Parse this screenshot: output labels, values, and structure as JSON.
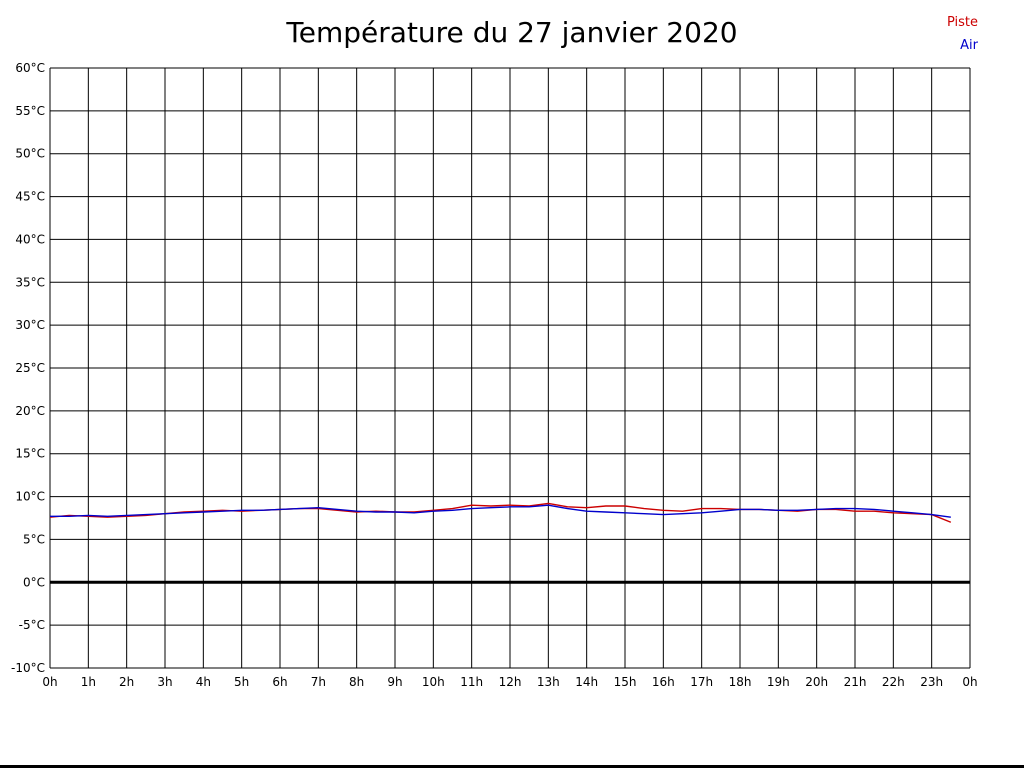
{
  "title": "Température du 27 janvier 2020",
  "chart_data": {
    "type": "line",
    "title": "Température du 27 janvier 2020",
    "xlabel": "",
    "ylabel": "",
    "xlim": [
      0,
      24
    ],
    "ylim": [
      -10,
      60
    ],
    "grid": true,
    "grid_color": "#000000",
    "zero_line": true,
    "zero_line_color": "#000000",
    "legend_position": "top-right",
    "x_tick_values": [
      0,
      1,
      2,
      3,
      4,
      5,
      6,
      7,
      8,
      9,
      10,
      11,
      12,
      13,
      14,
      15,
      16,
      17,
      18,
      19,
      20,
      21,
      22,
      23,
      24
    ],
    "x_tick_labels": [
      "0h",
      "1h",
      "2h",
      "3h",
      "4h",
      "5h",
      "6h",
      "7h",
      "8h",
      "9h",
      "10h",
      "11h",
      "12h",
      "13h",
      "14h",
      "15h",
      "16h",
      "17h",
      "18h",
      "19h",
      "20h",
      "21h",
      "22h",
      "23h",
      "0h"
    ],
    "y_tick_values": [
      60,
      55,
      50,
      45,
      40,
      35,
      30,
      25,
      20,
      15,
      10,
      5,
      0,
      -5,
      -10
    ],
    "y_tick_labels": [
      "60°C",
      "55°C",
      "50°C",
      "45°C",
      "40°C",
      "35°C",
      "30°C",
      "25°C",
      "20°C",
      "15°C",
      "10°C",
      "5°C",
      "0°C",
      "-5°C",
      "-10°C"
    ],
    "x": [
      0,
      0.5,
      1,
      1.5,
      2,
      2.5,
      3,
      3.5,
      4,
      4.5,
      5,
      5.5,
      6,
      6.5,
      7,
      7.5,
      8,
      8.5,
      9,
      9.5,
      10,
      10.5,
      11,
      11.5,
      12,
      12.5,
      13,
      13.5,
      14,
      14.5,
      15,
      15.5,
      16,
      16.5,
      17,
      17.5,
      18,
      18.5,
      19,
      19.5,
      20,
      20.5,
      21,
      21.5,
      22,
      22.5,
      23,
      23.5
    ],
    "series": [
      {
        "name": "Piste",
        "color": "#cc0000",
        "values": [
          7.6,
          7.8,
          7.7,
          7.6,
          7.7,
          7.8,
          8.0,
          8.2,
          8.3,
          8.4,
          8.3,
          8.4,
          8.5,
          8.6,
          8.6,
          8.4,
          8.2,
          8.3,
          8.2,
          8.2,
          8.4,
          8.6,
          9.0,
          8.9,
          9.0,
          8.9,
          9.2,
          8.8,
          8.7,
          8.9,
          8.9,
          8.6,
          8.4,
          8.3,
          8.6,
          8.6,
          8.5,
          8.5,
          8.4,
          8.3,
          8.5,
          8.5,
          8.3,
          8.3,
          8.1,
          8.0,
          7.9,
          7.0
        ]
      },
      {
        "name": "Air",
        "color": "#0000cc",
        "values": [
          7.7,
          7.7,
          7.8,
          7.7,
          7.8,
          7.9,
          8.0,
          8.1,
          8.2,
          8.3,
          8.4,
          8.4,
          8.5,
          8.6,
          8.7,
          8.5,
          8.3,
          8.2,
          8.2,
          8.1,
          8.3,
          8.4,
          8.6,
          8.7,
          8.8,
          8.8,
          9.0,
          8.6,
          8.3,
          8.2,
          8.1,
          8.0,
          7.9,
          8.0,
          8.1,
          8.3,
          8.5,
          8.5,
          8.4,
          8.4,
          8.5,
          8.6,
          8.6,
          8.5,
          8.3,
          8.1,
          7.9,
          7.6
        ]
      }
    ]
  }
}
